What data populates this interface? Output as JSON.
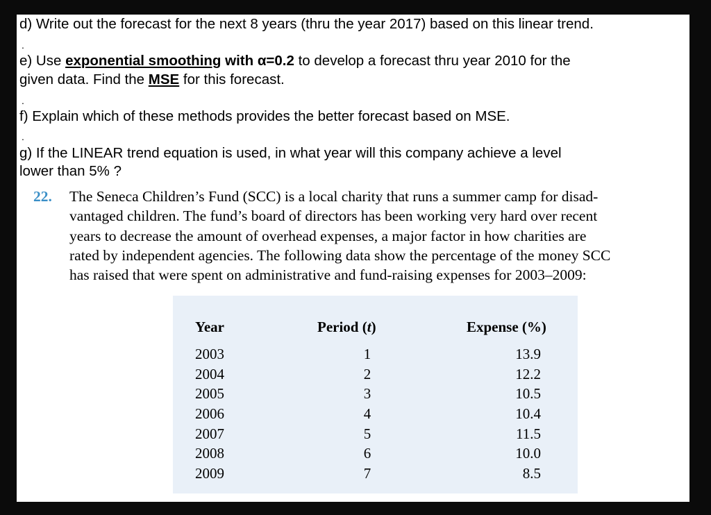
{
  "questions": {
    "d": "d) Write out the forecast for the next 8 years (thru the year 2017) based on this linear trend.",
    "e": {
      "prefix": "e) Use ",
      "method": "exponential smoothing",
      "alpha": " with α=0.2",
      "line1_rest": "  to develop a forecast thru year 2010 for the",
      "line2_prefix": "given data. Find the ",
      "mse": "MSE",
      "line2_rest": " for this forecast."
    },
    "f": "f) Explain which of these methods provides the better forecast based on MSE.",
    "g_line1": "g) If the LINEAR trend equation is used, in what year will this company achieve a level",
    "g_line2": "lower than 5% ?",
    "separator": "."
  },
  "problem": {
    "number": "22.",
    "lines": [
      "The Seneca Children’s Fund (SCC) is a local charity that runs a summer camp for disad-",
      "vantaged children. The fund’s board of directors has been working very hard over recent",
      "years to decrease the amount of overhead expenses, a major factor in how charities are",
      "rated by independent agencies. The following data show the percentage of the money SCC",
      "has raised that were spent on administrative and fund-raising expenses for 2003–2009:"
    ]
  },
  "table": {
    "headers": {
      "year": "Year",
      "period_pre": "Period (",
      "period_t": "t",
      "period_post": ")",
      "expense": "Expense (%)"
    },
    "years": [
      "2003",
      "2004",
      "2005",
      "2006",
      "2007",
      "2008",
      "2009"
    ],
    "periods": [
      "1",
      "2",
      "3",
      "4",
      "5",
      "6",
      "7"
    ],
    "expenses": [
      "13.9",
      "12.2",
      "10.5",
      "10.4",
      "11.5",
      "10.0",
      "8.5"
    ]
  },
  "colors": {
    "problem_number": "#3a8fc7",
    "table_bg": "#e9f0f8",
    "backdrop": "#0b0b0b"
  }
}
